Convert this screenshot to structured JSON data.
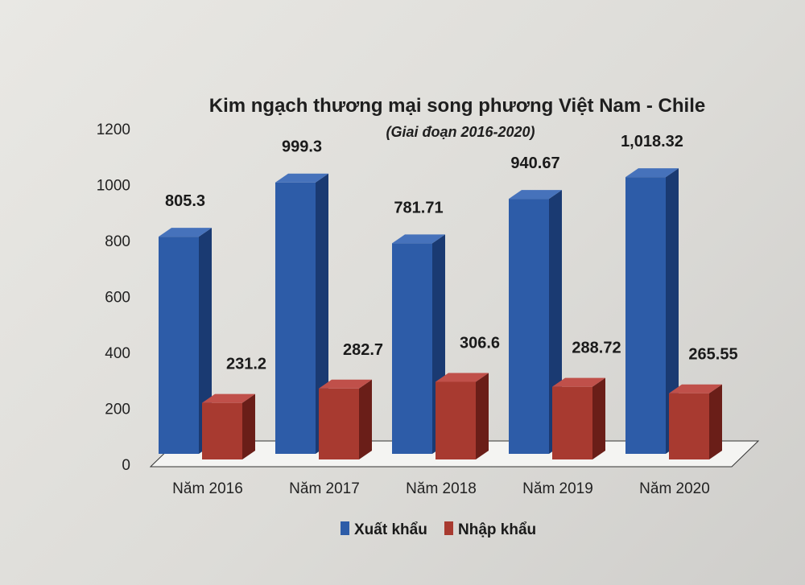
{
  "colors": {
    "export": "#2d5ca8",
    "export_side": "#1a3a72",
    "export_top": "#4672bb",
    "import": "#a83a30",
    "import_side": "#6a1e18",
    "import_top": "#c0504a"
  },
  "chart_data": {
    "type": "bar",
    "title": "Kim ngạch thương mại song phương Việt Nam - Chile",
    "subtitle": "(Giai đoạn 2016-2020)",
    "categories": [
      "Năm 2016",
      "Năm 2017",
      "Năm 2018",
      "Năm 2019",
      "Năm 2020"
    ],
    "series": [
      {
        "name": "Xuất khẩu",
        "values": [
          805.3,
          999.3,
          781.71,
          940.67,
          1018.32
        ],
        "labels": [
          "805.3",
          "999.3",
          "781.71",
          "940.67",
          "1,018.32"
        ]
      },
      {
        "name": "Nhập khẩu",
        "values": [
          231.2,
          282.7,
          306.6,
          288.72,
          265.55
        ],
        "labels": [
          "231.2",
          "282.7",
          "306.6",
          "288.72",
          "265.55"
        ]
      }
    ],
    "ylim": [
      0,
      1200
    ],
    "yticks": [
      "0",
      "200",
      "400",
      "600",
      "800",
      "1000",
      "1200"
    ],
    "legend_position": "bottom",
    "grid": false,
    "style": "3d-clustered-column"
  }
}
